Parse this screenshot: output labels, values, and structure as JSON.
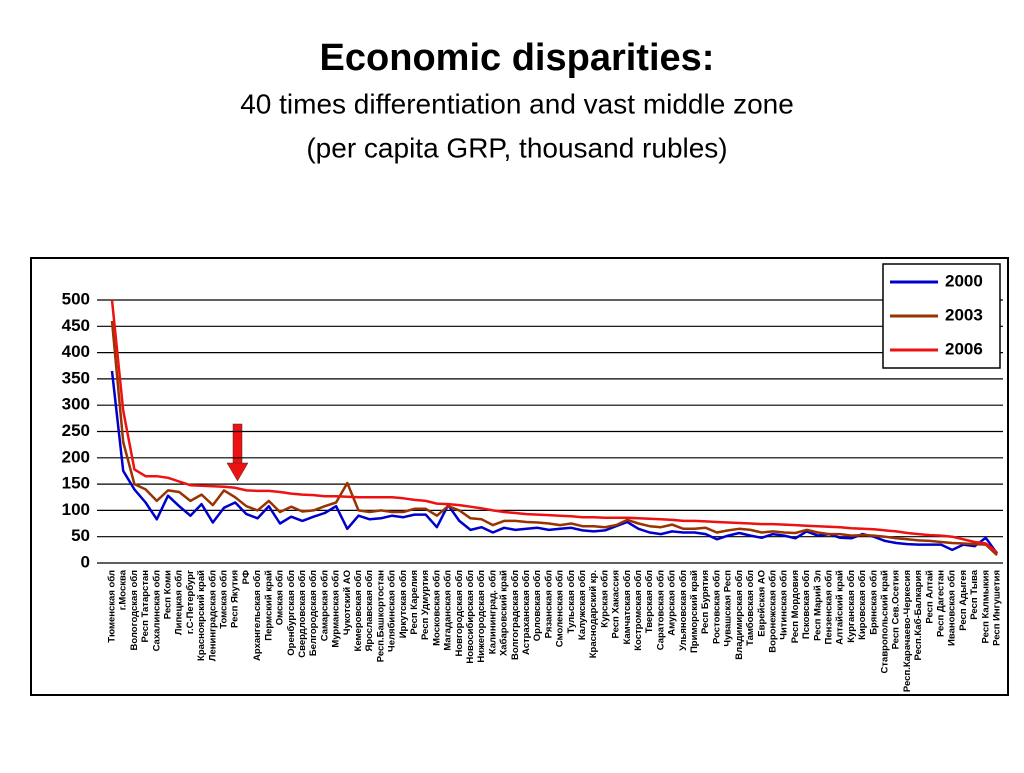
{
  "chart_data": {
    "type": "line",
    "title": "Economic disparities:",
    "subtitle": [
      "40 times differentiation and vast middle zone",
      "(per capita GRP, thousand rubles)"
    ],
    "categories": [
      "Тюменская обл",
      "г.Москва",
      "Вологодская обл",
      "Респ Татарстан",
      "Сахалинская обл",
      "Респ Коми",
      "Липецкая обл",
      "г.С-Петербург",
      "Красноярский край",
      "Ленинградская обл",
      "Томская обл",
      "Респ Якутия",
      "РФ",
      "Архангельская обл",
      "Пермский край",
      "Омская обл",
      "Оренбургская обл",
      "Свердловская обл",
      "Белгородская обл",
      "Самарская обл",
      "Мурманская обл",
      "Чукотский АО",
      "Кемеровская обл",
      "Ярославская обл",
      "Респ.Башкортостан",
      "Челябинская обл",
      "Иркутская обл",
      "Респ Карелия",
      "Респ Удмуртия",
      "Московская обл",
      "Магаданская обл",
      "Новгородская обл",
      "Новосибирская обл",
      "Нижегородская обл",
      "Калининград. обл",
      "Хабаровский край",
      "Волгоградская обл",
      "Астраханская обл",
      "Орловская обл",
      "Рязанская обл",
      "Смоленская обл",
      "Тульская обл",
      "Калужская обл",
      "Краснодарский кр.",
      "Курская обл",
      "Респ Хакассия",
      "Камчатская обл",
      "Костромская обл",
      "Тверская обл",
      "Саратовская обл",
      "Амурская обл",
      "Ульяновская обл",
      "Приморский край",
      "Респ Бурятия",
      "Ростовская обл",
      "Чувашская Респ",
      "Владимирская обл",
      "Тамбовская обл",
      "Еврейская АО",
      "Воронежская обл",
      "Читинская обл",
      "Респ Мордовия",
      "Псковская обл",
      "Респ Марий Эл",
      "Пензенская обл",
      "Алтайский край",
      "Курганская обл",
      "Кировская обл",
      "Брянская обл",
      "Ставропольский край",
      "Респ Сев.Осетия",
      "Респ.Карачаево-Черкесия",
      "Респ.Каб-Балкария",
      "Респ Алтай",
      "Респ Дагестан",
      "Ивановская обл",
      "Респ Адыгея",
      "Респ Тыва",
      "Респ Калмыкия",
      "Респ Ингушетия"
    ],
    "series": [
      {
        "name": "2000",
        "color": "#0000cc",
        "values": [
          365,
          175,
          140,
          115,
          83,
          128,
          108,
          90,
          112,
          77,
          105,
          115,
          93,
          85,
          108,
          75,
          88,
          80,
          88,
          95,
          108,
          65,
          90,
          83,
          85,
          90,
          87,
          92,
          92,
          68,
          110,
          80,
          63,
          68,
          58,
          67,
          63,
          65,
          67,
          63,
          65,
          67,
          62,
          60,
          62,
          70,
          78,
          65,
          58,
          55,
          60,
          58,
          58,
          55,
          45,
          52,
          57,
          52,
          48,
          55,
          52,
          47,
          60,
          52,
          55,
          48,
          47,
          55,
          50,
          42,
          38,
          36,
          35,
          35,
          35,
          25,
          35,
          32,
          48,
          18
        ]
      },
      {
        "name": "2003",
        "color": "#993300",
        "values": [
          460,
          230,
          150,
          140,
          118,
          138,
          135,
          118,
          130,
          110,
          138,
          125,
          108,
          100,
          118,
          97,
          107,
          98,
          100,
          108,
          115,
          152,
          100,
          97,
          100,
          97,
          97,
          103,
          103,
          90,
          108,
          100,
          85,
          83,
          72,
          80,
          80,
          78,
          77,
          75,
          72,
          75,
          70,
          70,
          68,
          72,
          82,
          75,
          70,
          68,
          73,
          65,
          65,
          67,
          58,
          62,
          65,
          63,
          58,
          60,
          58,
          57,
          63,
          58,
          55,
          55,
          52,
          53,
          52,
          50,
          47,
          45,
          43,
          42,
          40,
          38,
          37,
          36,
          35,
          15
        ]
      },
      {
        "name": "2006",
        "color": "#ee1111",
        "values": [
          500,
          290,
          178,
          165,
          165,
          162,
          155,
          148,
          147,
          146,
          145,
          143,
          138,
          137,
          137,
          135,
          132,
          130,
          129,
          127,
          127,
          126,
          125,
          125,
          125,
          125,
          123,
          120,
          118,
          113,
          112,
          110,
          107,
          104,
          100,
          97,
          95,
          93,
          92,
          91,
          90,
          89,
          87,
          87,
          86,
          86,
          86,
          85,
          84,
          83,
          82,
          80,
          80,
          79,
          78,
          77,
          76,
          75,
          74,
          74,
          73,
          72,
          71,
          70,
          69,
          68,
          66,
          65,
          64,
          62,
          60,
          57,
          55,
          53,
          52,
          50,
          45,
          40,
          37,
          20
        ]
      }
    ],
    "ylim": [
      0,
      500
    ],
    "yticks": [
      0,
      50,
      100,
      150,
      200,
      250,
      300,
      350,
      400,
      450,
      500
    ],
    "grid": true,
    "legend": "upper right"
  }
}
